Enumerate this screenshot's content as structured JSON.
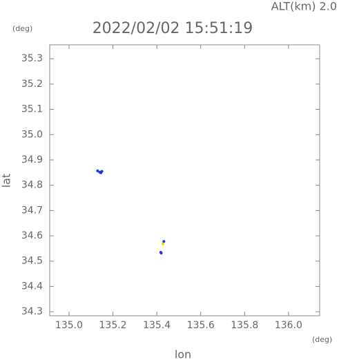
{
  "chart_data": {
    "type": "scatter",
    "title": "2022/02/02 15:51:19",
    "annotation": "ALT(km) 2.0",
    "y_unit": "(deg)",
    "x_unit": "(deg)",
    "xlabel": "lon",
    "ylabel": "lat",
    "xlim": [
      134.912,
      136.142
    ],
    "ylim": [
      34.284,
      35.355
    ],
    "xticks": [
      {
        "value": 135,
        "label": "135.0"
      },
      135.2,
      135.4,
      135.6,
      135.8,
      {
        "value": 136,
        "label": "136.0"
      }
    ],
    "yticks": [
      34.3,
      34.4,
      34.5,
      34.6,
      34.7,
      34.8,
      34.9,
      {
        "value": 35,
        "label": "35.0"
      },
      35.1,
      35.2,
      35.3
    ],
    "series": [
      {
        "color": "#2233dd",
        "x": [
          135.13,
          135.14,
          135.15,
          135.145,
          135.42,
          135.418,
          135.432
        ],
        "y": [
          34.857,
          34.852,
          34.855,
          34.849,
          34.532,
          34.535,
          34.578
        ]
      },
      {
        "color": "#e8d800",
        "x": [
          135.428
        ],
        "y": [
          34.568
        ]
      }
    ]
  }
}
